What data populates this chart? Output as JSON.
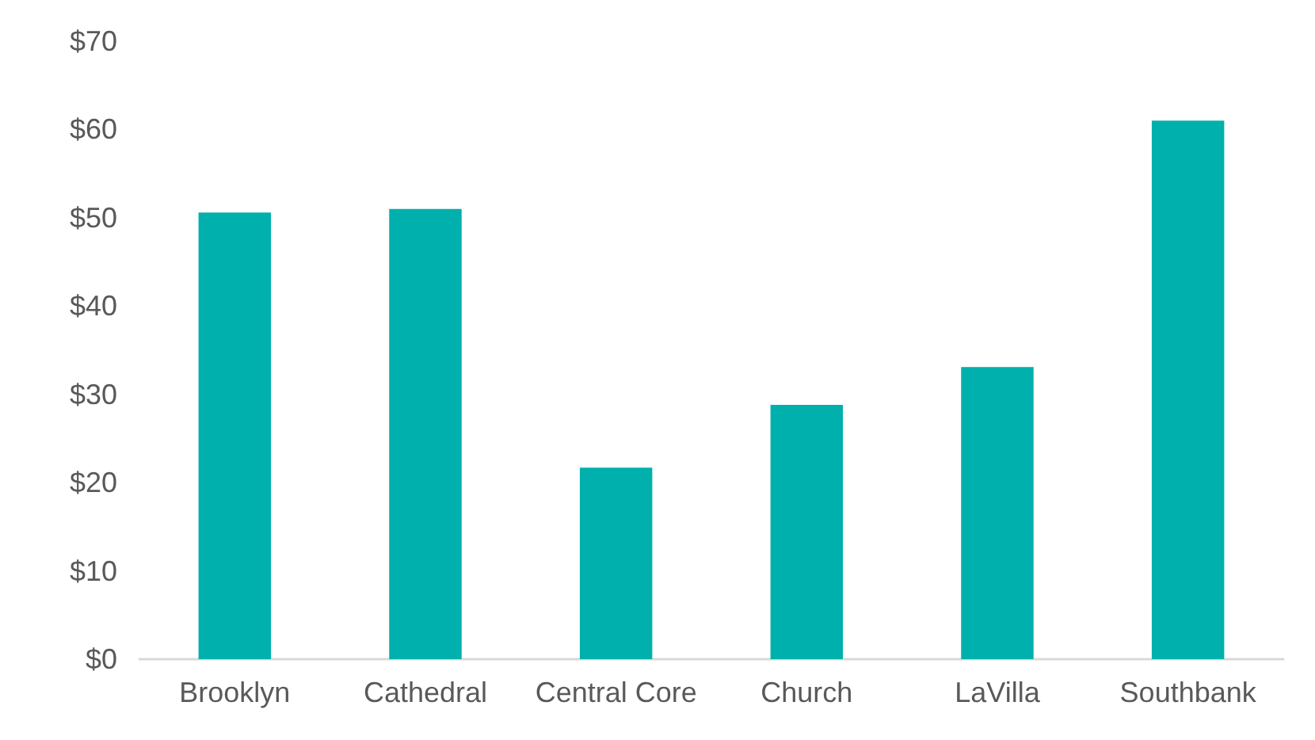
{
  "chart_data": {
    "type": "bar",
    "categories": [
      "Brooklyn",
      "Cathedral",
      "Central Core",
      "Church",
      "LaVilla",
      "Southbank"
    ],
    "values": [
      50.6,
      51.0,
      21.7,
      28.8,
      33.1,
      61.0
    ],
    "color": "#00b0ac",
    "ylim": [
      0,
      70
    ],
    "yticks": [
      {
        "value": 0,
        "label": "$0"
      },
      {
        "value": 10,
        "label": "$10"
      },
      {
        "value": 20,
        "label": "$20"
      },
      {
        "value": 30,
        "label": "$30"
      },
      {
        "value": 40,
        "label": "$40"
      },
      {
        "value": 50,
        "label": "$50"
      },
      {
        "value": 60,
        "label": "$60"
      },
      {
        "value": 70,
        "label": "$70"
      }
    ],
    "grid": false
  }
}
